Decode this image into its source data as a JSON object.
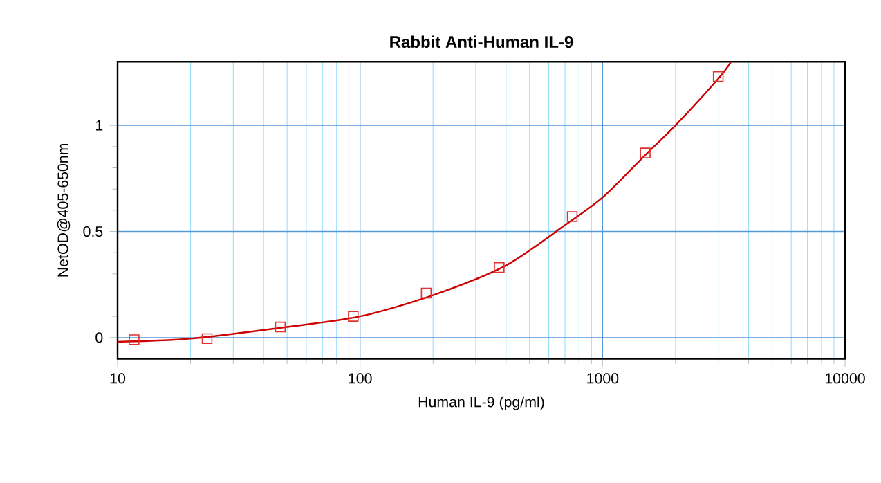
{
  "chart_data": {
    "type": "scatter",
    "title": "Rabbit Anti-Human IL-9",
    "xlabel": "Human IL-9 (pg/ml)",
    "ylabel": "NetOD@405-650nm",
    "log": "x",
    "grid": true,
    "xlim": [
      10,
      10000
    ],
    "xticks": [
      10,
      {
        "value": 20,
        "label": null
      },
      {
        "value": 30,
        "label": null
      },
      {
        "value": 40,
        "label": null
      },
      {
        "value": 50,
        "label": null
      },
      {
        "value": 60,
        "label": null
      },
      {
        "value": 70,
        "label": null
      },
      {
        "value": 80,
        "label": null
      },
      {
        "value": 90,
        "label": null
      },
      100,
      {
        "value": 200,
        "label": null
      },
      {
        "value": 300,
        "label": null
      },
      {
        "value": 400,
        "label": null
      },
      {
        "value": 500,
        "label": null
      },
      {
        "value": 600,
        "label": null
      },
      {
        "value": 700,
        "label": null
      },
      {
        "value": 800,
        "label": null
      },
      {
        "value": 900,
        "label": null
      },
      1000,
      {
        "value": 2000,
        "label": null
      },
      {
        "value": 3000,
        "label": null
      },
      {
        "value": 4000,
        "label": null
      },
      {
        "value": 5000,
        "label": null
      },
      {
        "value": 6000,
        "label": null
      },
      {
        "value": 7000,
        "label": null
      },
      {
        "value": 8000,
        "label": null
      },
      {
        "value": 9000,
        "label": null
      },
      10000
    ],
    "ylim": [
      -0.1,
      1.3
    ],
    "yticks": [
      0,
      0.5,
      1
    ],
    "series": [
      {
        "color": "#e03030",
        "marker": "square",
        "x": [
          11.7,
          23.4,
          46.9,
          93.75,
          187.5,
          375,
          750,
          1500,
          3000
        ],
        "values": [
          -0.01,
          -0.005,
          0.05,
          0.1,
          0.21,
          0.33,
          0.57,
          0.87,
          1.23
        ]
      },
      {
        "type": "line",
        "color": "#cc0000",
        "x": [
          10,
          20,
          50,
          100,
          200,
          400,
          700,
          1000,
          1500,
          2000,
          3000,
          3390
        ],
        "values": [
          -0.02,
          -0.005,
          0.05,
          0.1,
          0.2,
          0.34,
          0.53,
          0.66,
          0.86,
          1.0,
          1.22,
          1.3
        ]
      }
    ]
  }
}
